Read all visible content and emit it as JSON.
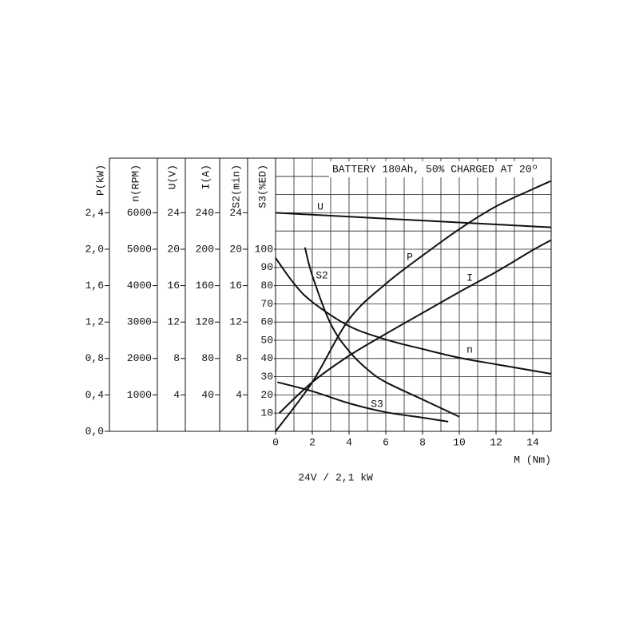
{
  "chart_data": {
    "type": "line",
    "title": "BATTERY 180Ah, 50% CHARGED AT 20º",
    "caption": "24V / 2,1 kW",
    "xlabel": "M (Nm)",
    "xlim": [
      0,
      15
    ],
    "xticks": [
      0,
      2,
      4,
      6,
      8,
      10,
      12,
      14
    ],
    "grid": true,
    "minor_grid": {
      "x": 1,
      "y": 0.2
    },
    "color": "#111111",
    "axes": [
      {
        "label": "P(kW)",
        "ylim": [
          0,
          3
        ],
        "yticks": [
          {
            "value": 0,
            "label": "0,0"
          },
          {
            "value": 0.4,
            "label": "0,4"
          },
          {
            "value": 0.8,
            "label": "0,8"
          },
          {
            "value": 1.2,
            "label": "1,2"
          },
          {
            "value": 1.6,
            "label": "1,6"
          },
          {
            "value": 2.0,
            "label": "2,0"
          },
          {
            "value": 2.4,
            "label": "2,4"
          }
        ]
      },
      {
        "label": "n(RPM)",
        "ylim": [
          0,
          7500
        ],
        "yticks": [
          1000,
          2000,
          3000,
          4000,
          5000,
          6000
        ]
      },
      {
        "label": "U(V)",
        "ylim": [
          0,
          30
        ],
        "yticks": [
          4,
          8,
          12,
          16,
          20,
          24
        ]
      },
      {
        "label": "I(A)",
        "ylim": [
          0,
          300
        ],
        "yticks": [
          40,
          80,
          120,
          160,
          200,
          240
        ]
      },
      {
        "label": "S2(min)",
        "ylim": [
          0,
          30
        ],
        "yticks": [
          4,
          8,
          12,
          16,
          20,
          24
        ]
      },
      {
        "label": "S3(%ED)",
        "ylim": [
          0,
          150
        ],
        "yticks": [
          10,
          20,
          30,
          40,
          50,
          60,
          70,
          80,
          90,
          100
        ]
      }
    ],
    "series": [
      {
        "name": "U",
        "axis": 2,
        "x": [
          0,
          7.5,
          15
        ],
        "values": [
          24,
          23.2,
          22.4
        ]
      },
      {
        "name": "P",
        "axis": 0,
        "x": [
          0,
          2,
          4,
          6,
          8,
          10,
          12,
          14,
          15
        ],
        "values": [
          0,
          0.54,
          1.23,
          1.62,
          1.93,
          2.22,
          2.47,
          2.66,
          2.75
        ]
      },
      {
        "name": "S2",
        "axis": 4,
        "x": [
          1.6,
          2,
          3,
          4,
          5,
          6,
          8,
          10
        ],
        "values": [
          20.2,
          17.1,
          11.8,
          8.8,
          6.8,
          5.4,
          3.5,
          1.6
        ]
      },
      {
        "name": "I",
        "axis": 3,
        "x": [
          0.2,
          2,
          4,
          6,
          8,
          10,
          12,
          14,
          15
        ],
        "values": [
          20,
          54,
          83,
          107,
          130,
          153,
          175,
          199,
          210
        ]
      },
      {
        "name": "n",
        "axis": 1,
        "x": [
          0,
          1,
          2,
          4,
          6,
          8,
          10,
          12,
          15
        ],
        "values": [
          4760,
          4060,
          3550,
          2890,
          2520,
          2260,
          2020,
          1840,
          1580
        ]
      },
      {
        "name": "S3",
        "axis": 5,
        "x": [
          0.1,
          2,
          4,
          6,
          8,
          9.4
        ],
        "values": [
          27,
          22,
          15.4,
          10.5,
          7.5,
          5.3
        ]
      }
    ]
  }
}
